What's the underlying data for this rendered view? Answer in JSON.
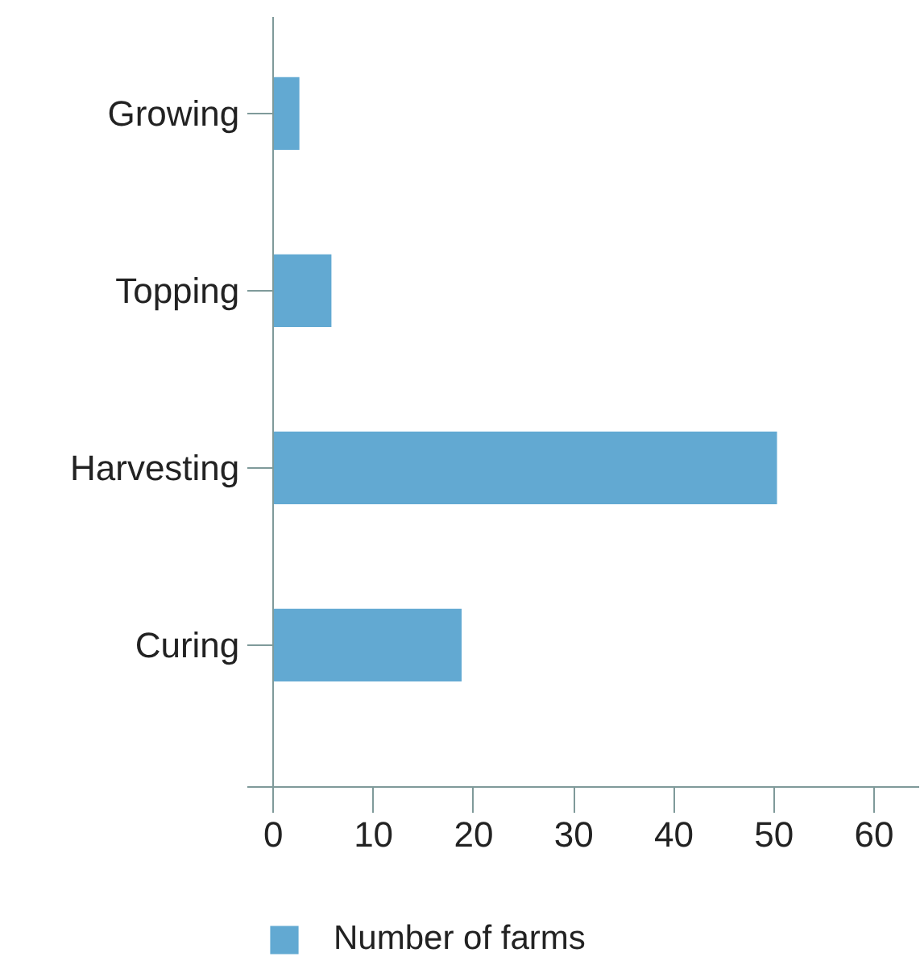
{
  "chart_data": {
    "type": "bar",
    "orientation": "horizontal",
    "categories": [
      "Growing",
      "Topping",
      "Harvesting",
      "Curing"
    ],
    "series": [
      {
        "name": "Number of farms",
        "color": "#62a9d2",
        "values": [
          2.6,
          5.8,
          50.3,
          18.8
        ]
      }
    ],
    "xlim": [
      -2.6,
      64.5
    ],
    "xticks": [
      0,
      10,
      20,
      30,
      40,
      50,
      60
    ],
    "grid": false,
    "legend": "bottom"
  }
}
